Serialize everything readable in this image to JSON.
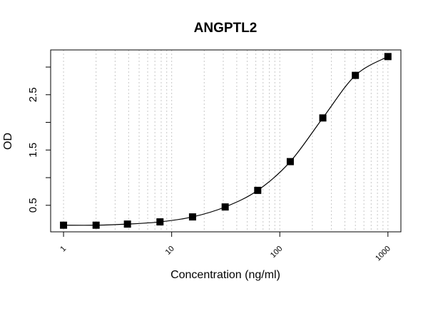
{
  "chart_data": {
    "type": "scatter",
    "title": "ANGPTL2",
    "x_label": "Concentration (ng/ml)",
    "y_label": "OD",
    "x": [
      1,
      2,
      3.9,
      7.8,
      15.6,
      31.25,
      62.5,
      125,
      250,
      500,
      1000
    ],
    "values": [
      0.14,
      0.14,
      0.16,
      0.2,
      0.29,
      0.47,
      0.77,
      1.29,
      2.08,
      2.85,
      3.19
    ],
    "color": "#000000",
    "fit_line": true,
    "x_log": true,
    "xlim": [
      0.76,
      1318
    ],
    "xticks": [
      1,
      10,
      100,
      1000
    ],
    "xgrid": [
      1,
      2,
      3,
      4,
      5,
      6,
      7,
      8,
      9,
      10,
      20,
      30,
      40,
      50,
      60,
      70,
      80,
      90,
      100,
      200,
      300,
      400,
      500,
      600,
      700,
      800,
      900,
      1000
    ],
    "ylim": [
      0.02,
      3.31
    ],
    "yticks": [
      0.5,
      1.5,
      2.5
    ],
    "yticks_unlabeled": [
      1,
      2,
      3
    ]
  }
}
